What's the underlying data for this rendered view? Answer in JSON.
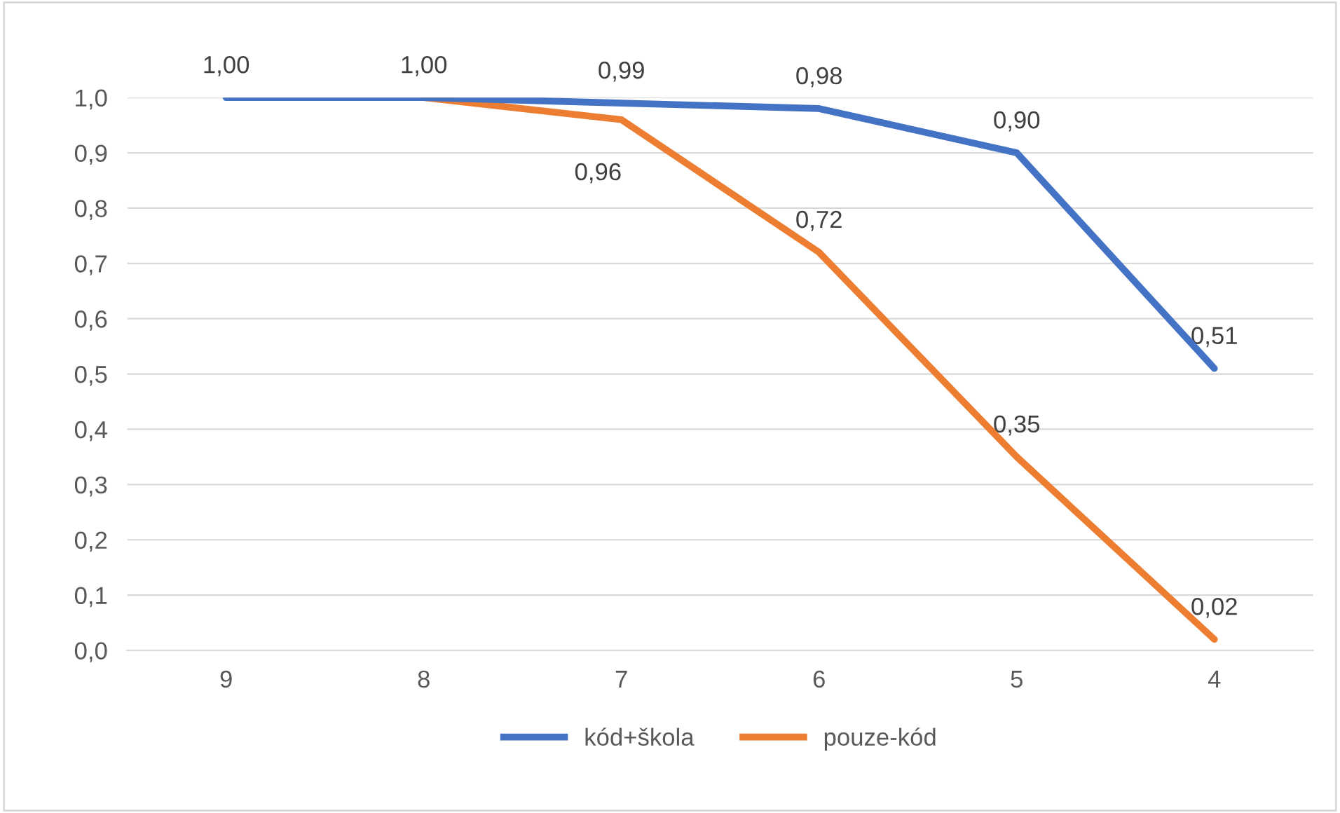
{
  "chart_data": {
    "type": "line",
    "categories": [
      "9",
      "8",
      "7",
      "6",
      "5",
      "4"
    ],
    "series": [
      {
        "name": "kód+škola",
        "color": "#4472c4",
        "values": [
          1.0,
          1.0,
          0.99,
          0.98,
          0.9,
          0.51
        ],
        "value_labels": [
          "1,00",
          "1,00",
          "0,99",
          "0,98",
          "0,90",
          "0,51"
        ]
      },
      {
        "name": "pouze-kód",
        "color": "#ed7d31",
        "values": [
          null,
          1.0,
          0.96,
          0.72,
          0.35,
          0.02
        ],
        "value_labels": [
          null,
          null,
          "0,96",
          "0,72",
          "0,35",
          "0,02"
        ]
      }
    ],
    "ylim": [
      0,
      1.0
    ],
    "yticks": [
      {
        "value": 0.0,
        "label": "0,0"
      },
      {
        "value": 0.1,
        "label": "0,1"
      },
      {
        "value": 0.2,
        "label": "0,2"
      },
      {
        "value": 0.3,
        "label": "0,3"
      },
      {
        "value": 0.4,
        "label": "0,4"
      },
      {
        "value": 0.5,
        "label": "0,5"
      },
      {
        "value": 0.6,
        "label": "0,6"
      },
      {
        "value": 0.7,
        "label": "0,7"
      },
      {
        "value": 0.8,
        "label": "0,8"
      },
      {
        "value": 0.9,
        "label": "0,9"
      },
      {
        "value": 1.0,
        "label": "1,0"
      }
    ],
    "grid": "y",
    "legend": "bottom",
    "marker": "none",
    "line_style": "solid"
  }
}
